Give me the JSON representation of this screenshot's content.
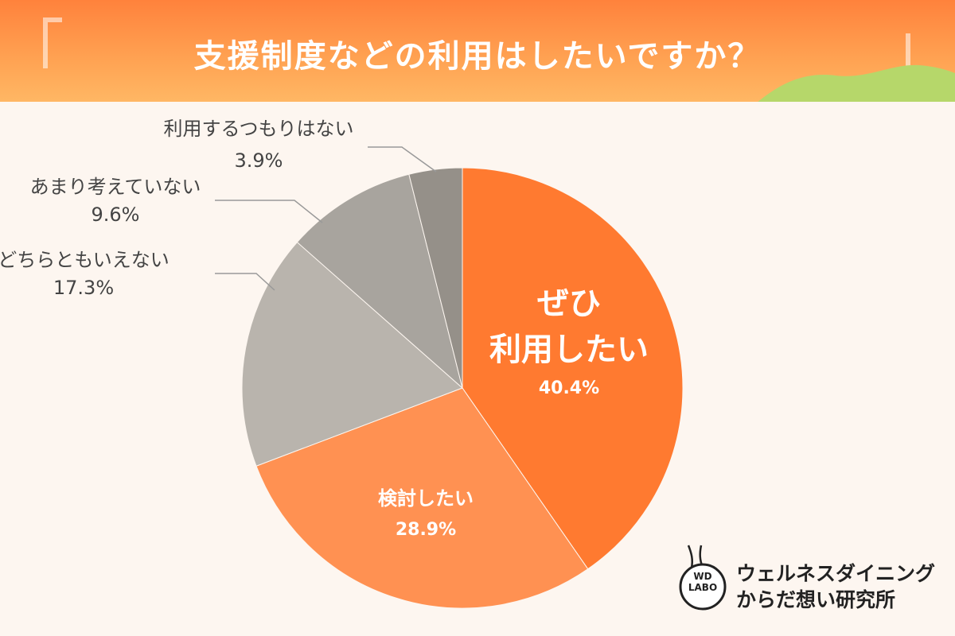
{
  "header": {
    "title": "支援制度などの利用はしたいですか？"
  },
  "logo": {
    "mark_line1": "WD",
    "mark_line2": "LABO",
    "line1": "ウェルネスダイニング",
    "line2": "からだ想い研究所"
  },
  "colors": {
    "header_start": "#ff823c",
    "header_end": "#ffb764",
    "background": "#fdf6f0",
    "hill": "#b6d76a"
  },
  "chart_data": {
    "type": "pie",
    "title": "支援制度などの利用はしたいですか？",
    "start_angle": "12 o'clock",
    "direction": "clockwise",
    "slices": [
      {
        "label_lines": [
          "ぜひ",
          "利用したい"
        ],
        "value": 40.4,
        "value_text": "40.4%",
        "color": "#ff7a30",
        "label_position": "inside"
      },
      {
        "label_lines": [
          "検討したい"
        ],
        "value": 28.9,
        "value_text": "28.9%",
        "color": "#ff9152",
        "label_position": "inside"
      },
      {
        "label_lines": [
          "どちらともいえない"
        ],
        "value": 17.3,
        "value_text": "17.3%",
        "color": "#b9b4ad",
        "label_position": "outside"
      },
      {
        "label_lines": [
          "あまり考えていない"
        ],
        "value": 9.6,
        "value_text": "9.6%",
        "color": "#a8a49e",
        "label_position": "outside"
      },
      {
        "label_lines": [
          "利用するつもりはない"
        ],
        "value": 3.9,
        "value_text": "3.9%",
        "color": "#959089",
        "label_position": "outside"
      }
    ]
  }
}
